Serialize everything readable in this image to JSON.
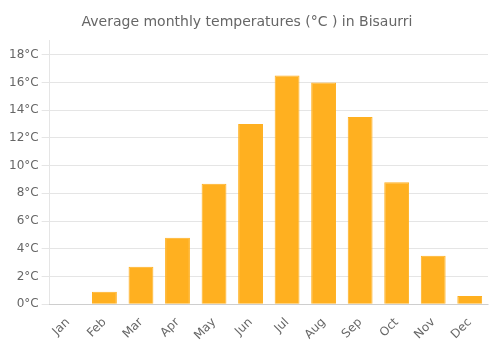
{
  "chart_data": {
    "type": "bar",
    "title": "Average monthly temperatures (°C ) in Bisaurri",
    "categories": [
      "Jan",
      "Feb",
      "Mar",
      "Apr",
      "May",
      "Jun",
      "Jul",
      "Aug",
      "Sep",
      "Oct",
      "Nov",
      "Dec"
    ],
    "values": [
      0.0,
      0.9,
      2.7,
      4.8,
      8.7,
      13.0,
      16.5,
      16.0,
      13.5,
      8.8,
      3.5,
      0.6
    ],
    "color": "#FFB020",
    "ylim": [
      0,
      19
    ],
    "yticks": [
      {
        "value": 0,
        "label": "0°C"
      },
      {
        "value": 2,
        "label": "2°C"
      },
      {
        "value": 4,
        "label": "4°C"
      },
      {
        "value": 6,
        "label": "6°C"
      },
      {
        "value": 8,
        "label": "8°C"
      },
      {
        "value": 10,
        "label": "10°C"
      },
      {
        "value": 12,
        "label": "12°C"
      },
      {
        "value": 14,
        "label": "14°C"
      },
      {
        "value": 16,
        "label": "16°C"
      },
      {
        "value": 18,
        "label": "18°C"
      }
    ],
    "grid": true
  }
}
